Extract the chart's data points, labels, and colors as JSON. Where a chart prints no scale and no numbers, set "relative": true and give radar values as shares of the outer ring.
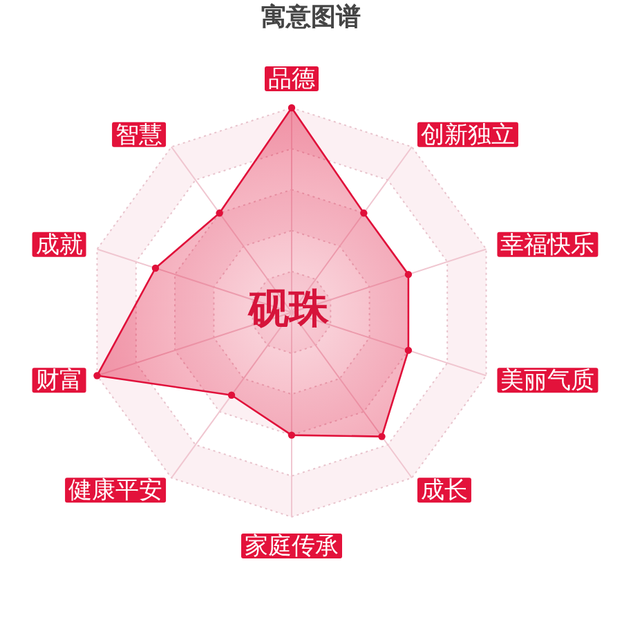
{
  "chart_data": {
    "type": "radar",
    "title": "寓意图谱",
    "categories": [
      "品德",
      "创新独立",
      "幸福快乐",
      "美丽气质",
      "成长",
      "家庭传承",
      "健康平安",
      "财富",
      "成就",
      "智慧"
    ],
    "relative": true,
    "grid": true,
    "marker": "circle",
    "series": [
      {
        "color": "#e0103a",
        "values": [
          1.0,
          0.6,
          0.6,
          0.6,
          0.75,
          0.6,
          0.5,
          1.0,
          0.7,
          0.6
        ]
      }
    ],
    "annotations": [
      "砚珠"
    ]
  }
}
